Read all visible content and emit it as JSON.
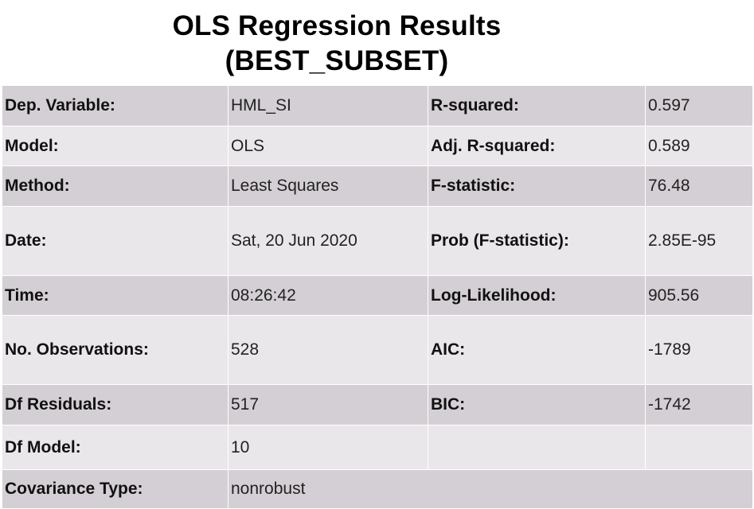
{
  "title": {
    "line1": "OLS Regression Results",
    "line2": "(BEST_SUBSET)"
  },
  "rows": [
    {
      "label_left": "Dep. Variable:",
      "value_left": "HML_SI",
      "label_right": "R-squared:",
      "value_right": "0.597"
    },
    {
      "label_left": "Model:",
      "value_left": "OLS",
      "label_right": "Adj. R-squared:",
      "value_right": "0.589"
    },
    {
      "label_left": "Method:",
      "value_left": "Least Squares",
      "label_right": "F-statistic:",
      "value_right": "76.48"
    },
    {
      "label_left": "Date:",
      "value_left": "Sat, 20 Jun 2020",
      "label_right": "Prob (F-statistic):",
      "value_right": "2.85E-95"
    },
    {
      "label_left": "Time:",
      "value_left": "08:26:42",
      "label_right": "Log-Likelihood:",
      "value_right": "905.56"
    },
    {
      "label_left": "No. Observations:",
      "value_left": "528",
      "label_right": "AIC:",
      "value_right": "-1789"
    },
    {
      "label_left": "Df Residuals:",
      "value_left": "517",
      "label_right": "BIC:",
      "value_right": "-1742"
    },
    {
      "label_left": "Df Model:",
      "value_left": "10",
      "label_right": "",
      "value_right": ""
    },
    {
      "label_left": "Covariance Type:",
      "value_left": "nonrobust"
    }
  ],
  "colors": {
    "row_dark": "#d4cfd4",
    "row_light": "#eae7ea",
    "grid_line": "#ffffff"
  }
}
